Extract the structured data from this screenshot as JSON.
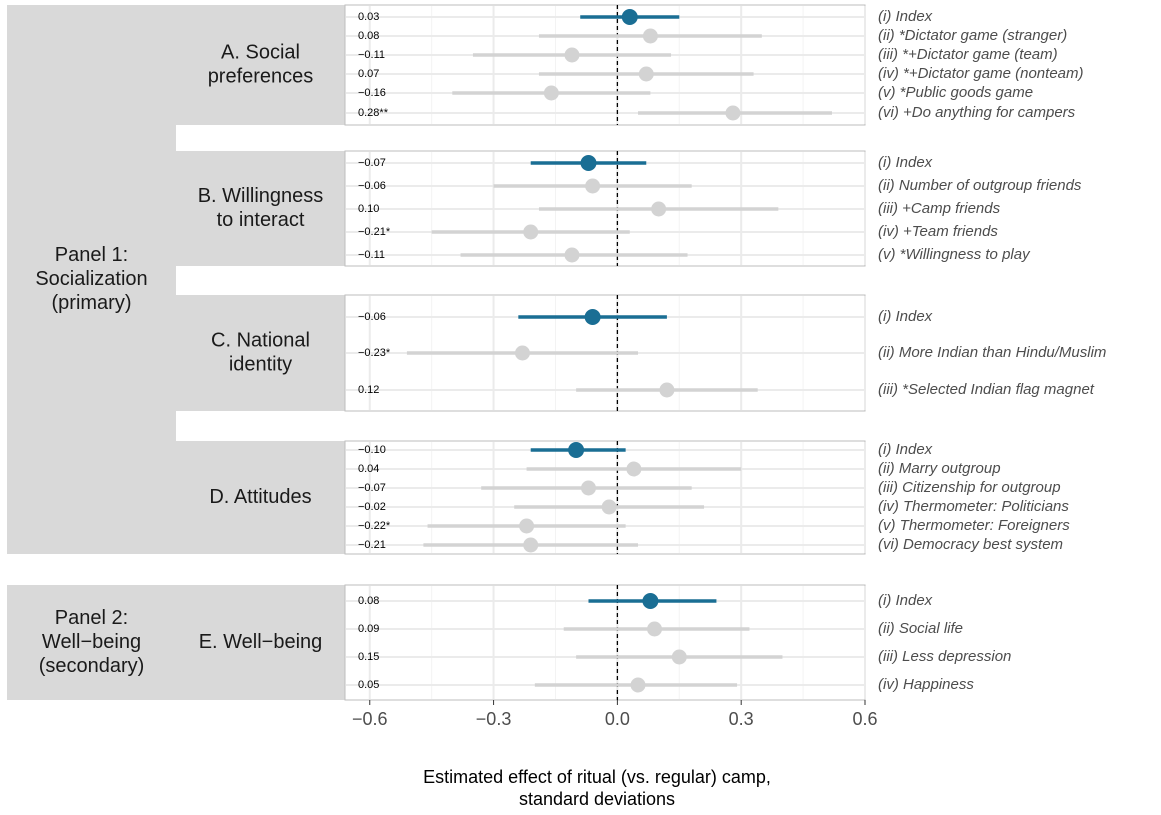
{
  "chart_data": {
    "type": "coefficient_plot",
    "xlabel": [
      "Estimated effect of ritual (vs. regular) camp,",
      "standard deviations"
    ],
    "xlim": [
      -0.66,
      0.6
    ],
    "xticks": [
      -0.6,
      -0.3,
      0.0,
      0.3,
      0.6
    ],
    "xtick_labels": [
      "−0.6",
      "−0.3",
      "0.0",
      "0.3",
      "0.6"
    ],
    "reference_line": 0,
    "colors": {
      "index": "#1a6e94",
      "other": "#d3d3d3"
    },
    "panel_groups": [
      {
        "label": [
          "Panel 1:",
          "Socialization",
          "(primary)"
        ],
        "facets": [
          "A",
          "B",
          "C",
          "D"
        ]
      },
      {
        "label": [
          "Panel 2:",
          "Well−being",
          "(secondary)"
        ],
        "facets": [
          "E"
        ]
      }
    ],
    "facets": [
      {
        "id": "A",
        "label": [
          "A. Social",
          "preferences"
        ],
        "rows": [
          {
            "outcome": "(i) Index",
            "estimate": 0.03,
            "label": "0.03",
            "ci": [
              -0.09,
              0.15
            ],
            "index": true
          },
          {
            "outcome": "(ii) *Dictator game (stranger)",
            "estimate": 0.08,
            "label": "0.08",
            "ci": [
              -0.19,
              0.35
            ],
            "index": false
          },
          {
            "outcome": "(iii) *+Dictator game (team)",
            "estimate": -0.11,
            "label": "−0.11",
            "ci": [
              -0.35,
              0.13
            ],
            "index": false
          },
          {
            "outcome": "(iv) *+Dictator game (nonteam)",
            "estimate": 0.07,
            "label": "0.07",
            "ci": [
              -0.19,
              0.33
            ],
            "index": false
          },
          {
            "outcome": "(v) *Public goods game",
            "estimate": -0.16,
            "label": "−0.16",
            "ci": [
              -0.4,
              0.08
            ],
            "index": false
          },
          {
            "outcome": "(vi) +Do anything for campers",
            "estimate": 0.28,
            "label": "0.28**",
            "ci": [
              0.05,
              0.52
            ],
            "index": false
          }
        ]
      },
      {
        "id": "B",
        "label": [
          "B. Willingness",
          "to interact"
        ],
        "rows": [
          {
            "outcome": "(i) Index",
            "estimate": -0.07,
            "label": "−0.07",
            "ci": [
              -0.21,
              0.07
            ],
            "index": true
          },
          {
            "outcome": "(ii) Number of outgroup friends",
            "estimate": -0.06,
            "label": "−0.06",
            "ci": [
              -0.3,
              0.18
            ],
            "index": false
          },
          {
            "outcome": "(iii) +Camp friends",
            "estimate": 0.1,
            "label": "0.10",
            "ci": [
              -0.19,
              0.39
            ],
            "index": false
          },
          {
            "outcome": "(iv) +Team friends",
            "estimate": -0.21,
            "label": "−0.21*",
            "ci": [
              -0.45,
              0.03
            ],
            "index": false
          },
          {
            "outcome": "(v) *Willingness to play",
            "estimate": -0.11,
            "label": "−0.11",
            "ci": [
              -0.38,
              0.17
            ],
            "index": false
          }
        ]
      },
      {
        "id": "C",
        "label": [
          "C. National",
          "identity"
        ],
        "rows": [
          {
            "outcome": "(i) Index",
            "estimate": -0.06,
            "label": "−0.06",
            "ci": [
              -0.24,
              0.12
            ],
            "index": true
          },
          {
            "outcome": "(ii) More Indian than Hindu/Muslim",
            "estimate": -0.23,
            "label": "−0.23*",
            "ci": [
              -0.51,
              0.05
            ],
            "index": false
          },
          {
            "outcome": "(iii) *Selected Indian flag magnet",
            "estimate": 0.12,
            "label": "0.12",
            "ci": [
              -0.1,
              0.34
            ],
            "index": false
          }
        ]
      },
      {
        "id": "D",
        "label": [
          "D. Attitudes"
        ],
        "rows": [
          {
            "outcome": "(i) Index",
            "estimate": -0.1,
            "label": "−0.10",
            "ci": [
              -0.21,
              0.02
            ],
            "index": true
          },
          {
            "outcome": "(ii) Marry outgroup",
            "estimate": 0.04,
            "label": "0.04",
            "ci": [
              -0.22,
              0.3
            ],
            "index": false
          },
          {
            "outcome": "(iii) Citizenship for outgroup",
            "estimate": -0.07,
            "label": "−0.07",
            "ci": [
              -0.33,
              0.18
            ],
            "index": false
          },
          {
            "outcome": "(iv) Thermometer: Politicians",
            "estimate": -0.02,
            "label": "−0.02",
            "ci": [
              -0.25,
              0.21
            ],
            "index": false
          },
          {
            "outcome": "(v) Thermometer: Foreigners",
            "estimate": -0.22,
            "label": "−0.22*",
            "ci": [
              -0.46,
              0.02
            ],
            "index": false
          },
          {
            "outcome": "(vi) Democracy best system",
            "estimate": -0.21,
            "label": "−0.21",
            "ci": [
              -0.47,
              0.05
            ],
            "index": false
          }
        ]
      },
      {
        "id": "E",
        "label": [
          "E. Well−being"
        ],
        "rows": [
          {
            "outcome": "(i) Index",
            "estimate": 0.08,
            "label": "0.08",
            "ci": [
              -0.07,
              0.24
            ],
            "index": true
          },
          {
            "outcome": "(ii) Social life",
            "estimate": 0.09,
            "label": "0.09",
            "ci": [
              -0.13,
              0.32
            ],
            "index": false
          },
          {
            "outcome": "(iii) Less depression",
            "estimate": 0.15,
            "label": "0.15",
            "ci": [
              -0.1,
              0.4
            ],
            "index": false
          },
          {
            "outcome": "(iv) Happiness",
            "estimate": 0.05,
            "label": "0.05",
            "ci": [
              -0.2,
              0.29
            ],
            "index": false
          }
        ]
      }
    ]
  }
}
